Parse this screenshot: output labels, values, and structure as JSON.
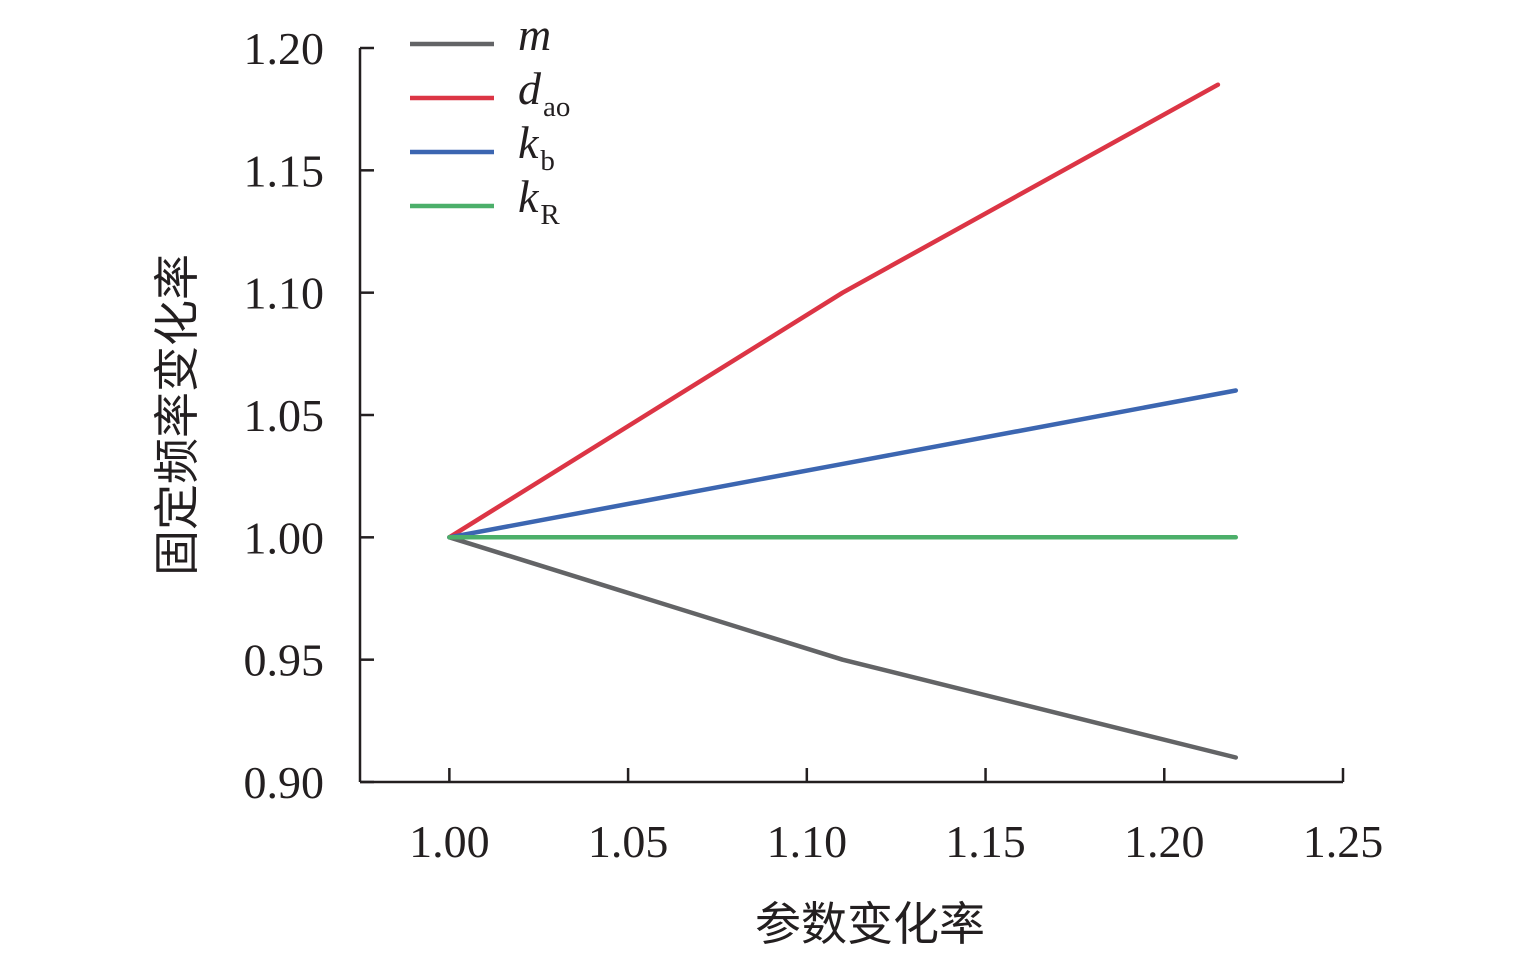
{
  "chart_data": {
    "type": "line",
    "title": "",
    "xlabel": "参数变化率",
    "ylabel": "固定频率变化率",
    "xlim": [
      0.975,
      1.25
    ],
    "ylim": [
      0.9,
      1.2
    ],
    "xticks": [
      "1.00",
      "1.05",
      "1.10",
      "1.15",
      "1.20",
      "1.25"
    ],
    "xtick_values": [
      1.0,
      1.05,
      1.1,
      1.15,
      1.2,
      1.25
    ],
    "yticks": [
      "0.90",
      "0.95",
      "1.00",
      "1.05",
      "1.10",
      "1.15",
      "1.20"
    ],
    "ytick_values": [
      0.9,
      0.95,
      1.0,
      1.05,
      1.1,
      1.15,
      1.2
    ],
    "legend_position": "top-left",
    "grid": false,
    "series": [
      {
        "name": "m",
        "sub": "",
        "color": "#636466",
        "x": [
          1.0,
          1.11,
          1.22
        ],
        "y": [
          1.0,
          0.95,
          0.91
        ]
      },
      {
        "name": "d",
        "sub": "ao",
        "color": "#dc3545",
        "x": [
          1.0,
          1.11,
          1.215
        ],
        "y": [
          1.0,
          1.1,
          1.185
        ]
      },
      {
        "name": "k",
        "sub": "b",
        "color": "#3c66b1",
        "x": [
          1.0,
          1.11,
          1.22
        ],
        "y": [
          1.0,
          1.03,
          1.06
        ]
      },
      {
        "name": "k",
        "sub": "R",
        "color": "#4caf6a",
        "x": [
          1.0,
          1.11,
          1.22
        ],
        "y": [
          1.0,
          1.0,
          1.0
        ]
      }
    ]
  }
}
